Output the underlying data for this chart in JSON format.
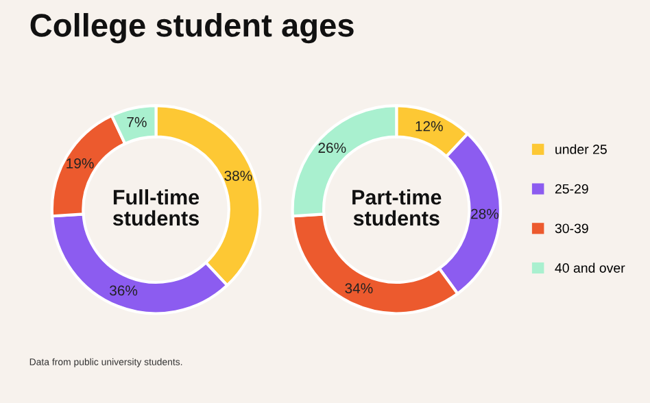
{
  "chart_data": [
    {
      "type": "donut",
      "title": "College student ages",
      "subtitle": "Full-time\nstudents",
      "categories": [
        "under 25",
        "25-29",
        "30-39",
        "40 and over"
      ],
      "values": [
        38,
        36,
        19,
        7
      ],
      "value_labels": [
        "38%",
        "36%",
        "19%",
        "7%"
      ],
      "colors": [
        "#fdc834",
        "#8c5cf0",
        "#ec5a2e",
        "#a9f0cf"
      ],
      "legend": "right",
      "annotations": [
        "Data from public university students."
      ]
    },
    {
      "type": "donut",
      "subtitle": "Part-time\nstudents",
      "categories": [
        null,
        null,
        null,
        null
      ],
      "values": [
        12,
        28,
        34,
        26
      ],
      "value_labels": [
        "12%",
        "28%",
        "34%",
        "26%"
      ],
      "colors": [
        "#fdc834",
        "#8c5cf0",
        "#ec5a2e",
        "#a9f0cf"
      ]
    }
  ]
}
